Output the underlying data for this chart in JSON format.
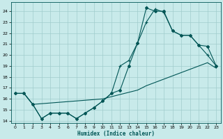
{
  "xlabel": "Humidex (Indice chaleur)",
  "bg_color": "#c8eaea",
  "grid_color": "#a0cccc",
  "line_color": "#005555",
  "xlim": [
    -0.5,
    23.5
  ],
  "ylim": [
    13.8,
    24.8
  ],
  "yticks": [
    14,
    15,
    16,
    17,
    18,
    19,
    20,
    21,
    22,
    23,
    24
  ],
  "xticks": [
    0,
    1,
    2,
    3,
    4,
    5,
    6,
    7,
    8,
    9,
    10,
    11,
    12,
    13,
    14,
    15,
    16,
    17,
    18,
    19,
    20,
    21,
    22,
    23
  ],
  "series1_x": [
    0,
    1,
    2,
    3,
    4,
    5,
    6,
    7,
    8,
    9,
    10,
    11,
    12,
    13,
    14,
    15,
    16,
    17,
    18,
    19,
    20,
    21,
    22,
    23
  ],
  "series1_y": [
    16.5,
    16.5,
    15.5,
    14.2,
    14.7,
    14.7,
    14.7,
    14.2,
    14.7,
    15.2,
    15.8,
    16.5,
    16.8,
    19.0,
    21.1,
    24.3,
    24.0,
    24.0,
    22.2,
    21.8,
    21.8,
    20.9,
    20.8,
    19.0
  ],
  "series2_x": [
    0,
    1,
    2,
    3,
    4,
    5,
    6,
    7,
    8,
    9,
    10,
    11,
    12,
    13,
    14,
    15,
    16,
    17,
    18,
    19,
    20,
    21,
    22,
    23
  ],
  "series2_y": [
    16.5,
    16.5,
    15.5,
    14.2,
    14.7,
    14.7,
    14.7,
    14.2,
    14.7,
    15.2,
    15.8,
    16.5,
    19.0,
    19.5,
    21.1,
    23.0,
    24.2,
    23.9,
    22.2,
    21.8,
    21.8,
    20.9,
    20.0,
    19.0
  ],
  "series3_x": [
    0,
    1,
    2,
    10,
    11,
    12,
    13,
    14,
    15,
    16,
    17,
    18,
    19,
    20,
    21,
    22,
    23
  ],
  "series3_y": [
    16.5,
    16.5,
    15.5,
    16.0,
    16.2,
    16.4,
    16.6,
    16.8,
    17.2,
    17.5,
    17.8,
    18.1,
    18.4,
    18.7,
    19.0,
    19.3,
    18.8
  ]
}
